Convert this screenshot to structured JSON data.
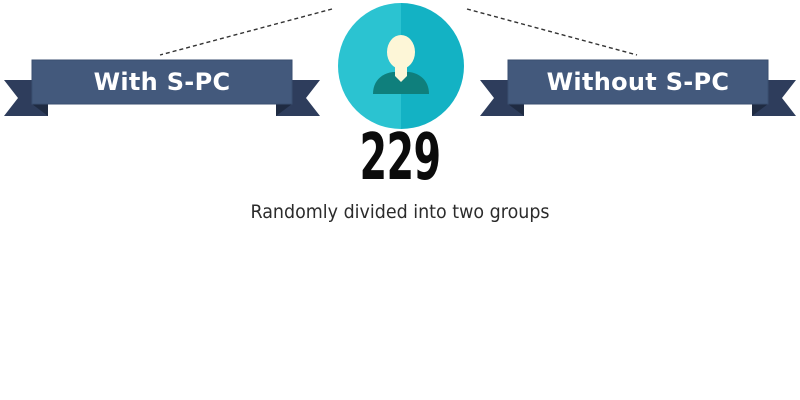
{
  "groups": [
    {
      "label": "With S-PC"
    },
    {
      "label": "Without S-PC"
    }
  ],
  "total": {
    "count": "229",
    "caption": "Randomly divided into two groups"
  },
  "colors": {
    "ribbon_face": "#43597c",
    "ribbon_back": "#2e3d5c",
    "circle_light": "#2bc3d1",
    "circle_dark": "#13b2c4",
    "person_head": "#fdf6d7",
    "person_body": "#0f7f7c",
    "connector": "#333333"
  },
  "icons": {
    "center": "person-icon"
  }
}
